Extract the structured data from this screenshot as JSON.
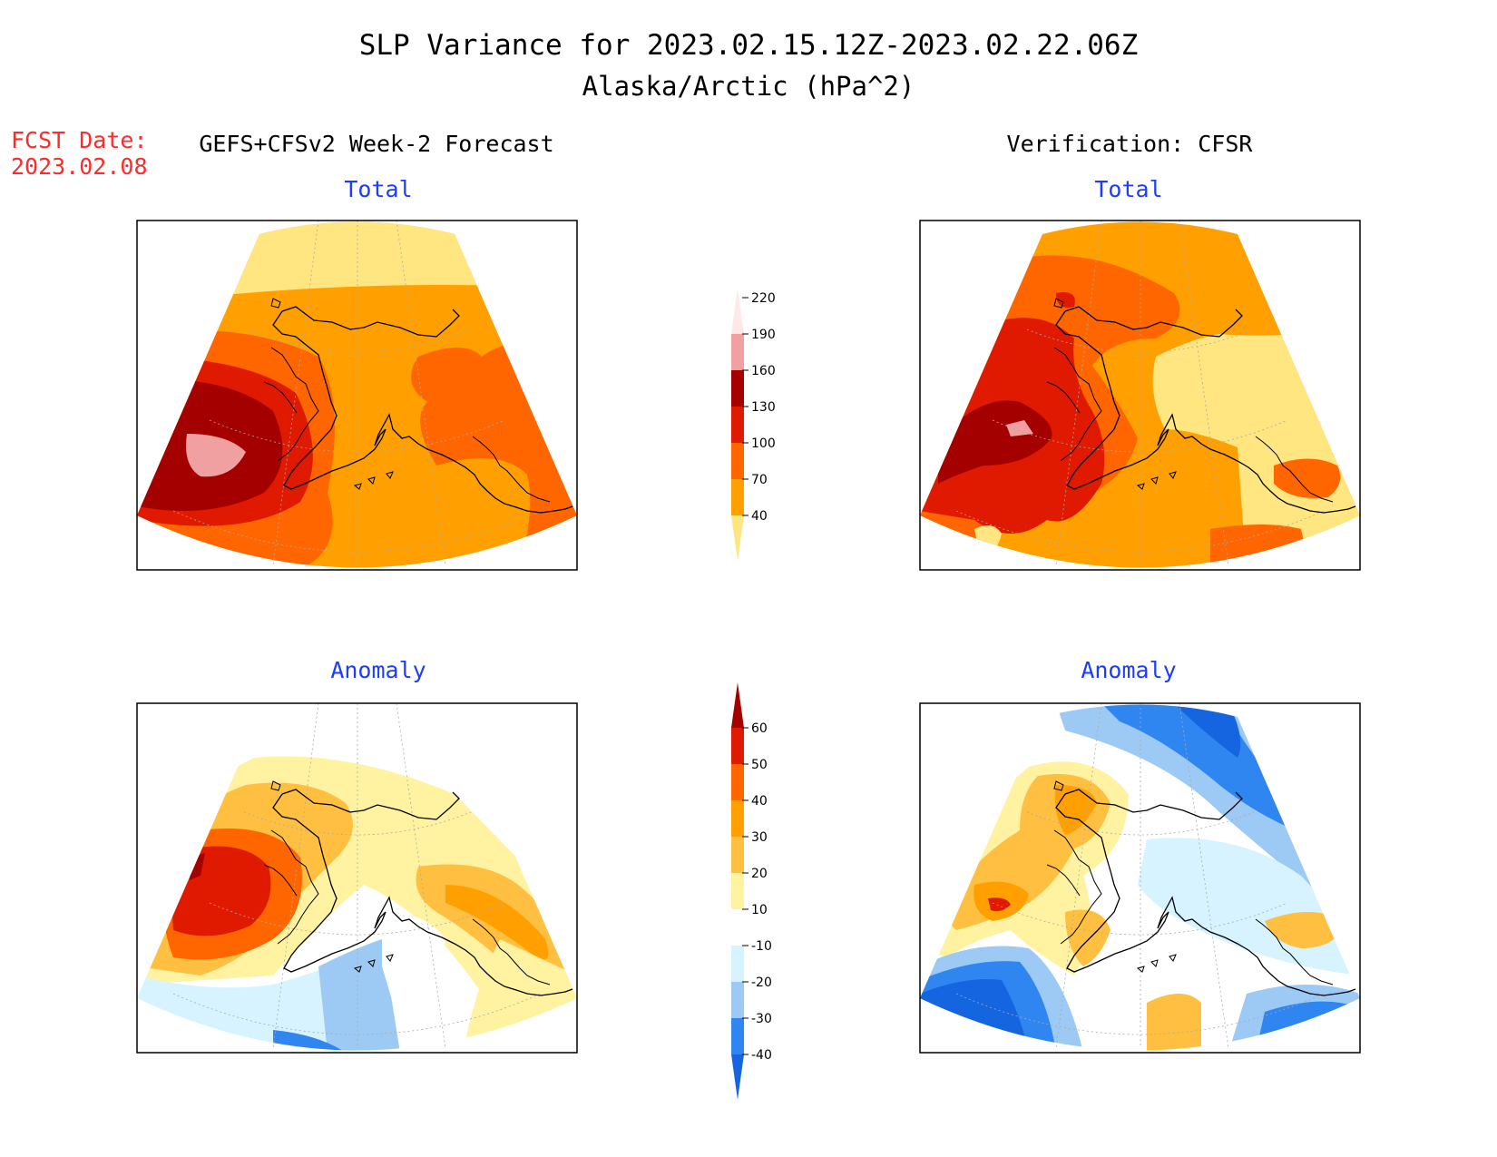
{
  "header": {
    "title": "SLP Variance for 2023.02.15.12Z-2023.02.22.06Z",
    "subtitle": "Alaska/Arctic (hPa^2)"
  },
  "fcst": {
    "label": "FCST Date:",
    "date": "2023.02.08",
    "color": "#ff2a2a"
  },
  "left_column_title": "GEFS+CFSv2 Week-2 Forecast",
  "right_column_title": "Verification: CFSR",
  "panels": {
    "forecast_total_title": "Total",
    "verification_total_title": "Total",
    "forecast_anomaly_title": "Anomaly",
    "verification_anomaly_title": "Anomaly",
    "title_color": "#1c3cff"
  },
  "colorbar_total": {
    "levels": [
      "40",
      "70",
      "100",
      "130",
      "160",
      "190",
      "220"
    ],
    "colors": [
      "#ffe680",
      "#ffa000",
      "#ff6600",
      "#e01a00",
      "#a50000",
      "#f0a0a0",
      "#ffe8e8"
    ]
  },
  "colorbar_anomaly": {
    "levels": [
      "-40",
      "-30",
      "-20",
      "-10",
      "10",
      "20",
      "30",
      "40",
      "50",
      "60"
    ],
    "colors": [
      "#1565e0",
      "#2f86f0",
      "#9ccaf5",
      "#d6f3ff",
      "#ffffff",
      "#fff2a0",
      "#ffbf40",
      "#ffa000",
      "#ff6600",
      "#e01a00",
      "#a50000"
    ]
  }
}
